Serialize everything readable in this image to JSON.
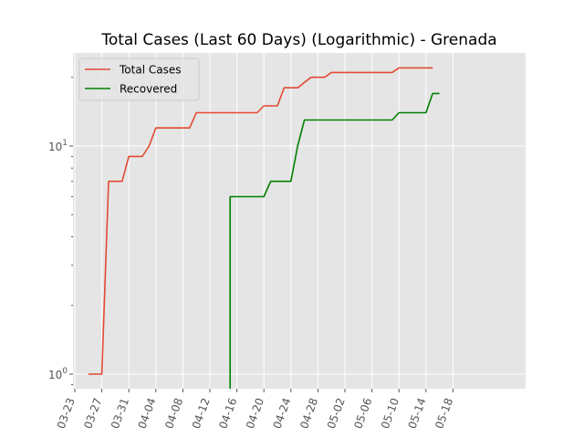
{
  "chart_data": {
    "type": "line",
    "title": "Total Cases (Last 60 Days) (Logarithmic) - Grenada",
    "xlabel": "",
    "ylabel": "",
    "yscale": "log",
    "x_ticks": [
      "03-23",
      "03-27",
      "03-31",
      "04-04",
      "04-08",
      "04-12",
      "04-16",
      "04-20",
      "04-24",
      "04-28",
      "05-02",
      "05-06",
      "05-10",
      "05-14",
      "05-18"
    ],
    "y_ticks": [
      "10^0",
      "10^1"
    ],
    "grid": true,
    "legend_position": "top-left",
    "colors": {
      "total": "#e24a33",
      "recovered": "#008000",
      "background": "#e5e5e5",
      "grid": "#ffffff"
    },
    "series": [
      {
        "name": "Total Cases",
        "color": "#e24a33",
        "points": [
          [
            "03-25",
            1
          ],
          [
            "03-27",
            1
          ],
          [
            "03-28",
            7
          ],
          [
            "03-29",
            7
          ],
          [
            "03-30",
            7
          ],
          [
            "03-31",
            9
          ],
          [
            "04-01",
            9
          ],
          [
            "04-02",
            9
          ],
          [
            "04-03",
            10
          ],
          [
            "04-04",
            12
          ],
          [
            "04-05",
            12
          ],
          [
            "04-06",
            12
          ],
          [
            "04-07",
            12
          ],
          [
            "04-08",
            12
          ],
          [
            "04-09",
            12
          ],
          [
            "04-10",
            14
          ],
          [
            "04-11",
            14
          ],
          [
            "04-12",
            14
          ],
          [
            "04-13",
            14
          ],
          [
            "04-14",
            14
          ],
          [
            "04-15",
            14
          ],
          [
            "04-16",
            14
          ],
          [
            "04-17",
            14
          ],
          [
            "04-18",
            14
          ],
          [
            "04-19",
            14
          ],
          [
            "04-20",
            15
          ],
          [
            "04-21",
            15
          ],
          [
            "04-22",
            15
          ],
          [
            "04-23",
            18
          ],
          [
            "04-24",
            18
          ],
          [
            "04-25",
            18
          ],
          [
            "04-26",
            19
          ],
          [
            "04-27",
            20
          ],
          [
            "04-28",
            20
          ],
          [
            "04-29",
            20
          ],
          [
            "04-30",
            21
          ],
          [
            "05-01",
            21
          ],
          [
            "05-02",
            21
          ],
          [
            "05-03",
            21
          ],
          [
            "05-04",
            21
          ],
          [
            "05-05",
            21
          ],
          [
            "05-06",
            21
          ],
          [
            "05-07",
            21
          ],
          [
            "05-08",
            21
          ],
          [
            "05-09",
            21
          ],
          [
            "05-10",
            22
          ],
          [
            "05-11",
            22
          ],
          [
            "05-12",
            22
          ],
          [
            "05-13",
            22
          ],
          [
            "05-14",
            22
          ],
          [
            "05-15",
            22
          ]
        ]
      },
      {
        "name": "Recovered",
        "color": "#008000",
        "points": [
          [
            "04-15",
            0.5
          ],
          [
            "04-15",
            6
          ],
          [
            "04-16",
            6
          ],
          [
            "04-17",
            6
          ],
          [
            "04-18",
            6
          ],
          [
            "04-19",
            6
          ],
          [
            "04-20",
            6
          ],
          [
            "04-21",
            7
          ],
          [
            "04-22",
            7
          ],
          [
            "04-23",
            7
          ],
          [
            "04-24",
            7
          ],
          [
            "04-25",
            10
          ],
          [
            "04-26",
            13
          ],
          [
            "04-27",
            13
          ],
          [
            "04-28",
            13
          ],
          [
            "04-29",
            13
          ],
          [
            "04-30",
            13
          ],
          [
            "05-01",
            13
          ],
          [
            "05-02",
            13
          ],
          [
            "05-03",
            13
          ],
          [
            "05-04",
            13
          ],
          [
            "05-05",
            13
          ],
          [
            "05-06",
            13
          ],
          [
            "05-07",
            13
          ],
          [
            "05-08",
            13
          ],
          [
            "05-09",
            13
          ],
          [
            "05-10",
            14
          ],
          [
            "05-11",
            14
          ],
          [
            "05-12",
            14
          ],
          [
            "05-13",
            14
          ],
          [
            "05-14",
            14
          ],
          [
            "05-15",
            17
          ],
          [
            "05-16",
            17
          ]
        ]
      }
    ]
  }
}
